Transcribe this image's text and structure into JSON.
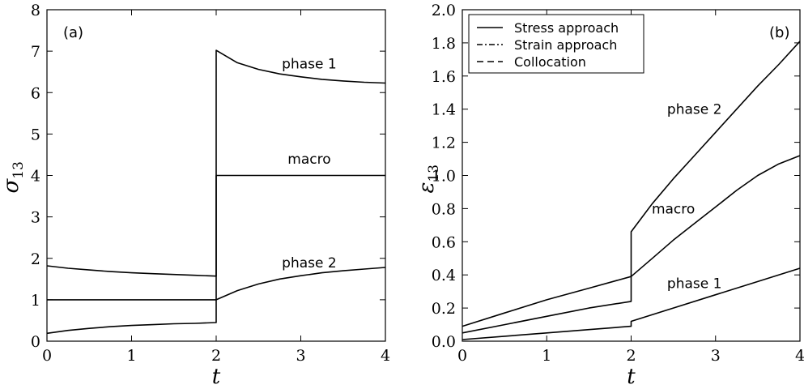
{
  "chart_data": [
    {
      "type": "line",
      "panel_label": "(a)",
      "xlabel": "t",
      "ylabel_symbol": "σ",
      "ylabel_sub": "13",
      "xlim": [
        0,
        4
      ],
      "ylim": [
        0,
        8
      ],
      "xticks": [
        0,
        1,
        2,
        3,
        4
      ],
      "yticks": [
        0,
        1,
        2,
        3,
        4,
        5,
        6,
        7,
        8
      ],
      "grid": false,
      "series": [
        {
          "name": "phase 1",
          "x": [
            0,
            0.25,
            0.5,
            0.75,
            1.0,
            1.25,
            1.5,
            1.75,
            2.0,
            2.0,
            2.25,
            2.5,
            2.75,
            3.0,
            3.25,
            3.5,
            3.75,
            4.0
          ],
          "y": [
            1.82,
            1.76,
            1.72,
            1.68,
            1.65,
            1.63,
            1.61,
            1.59,
            1.57,
            7.02,
            6.72,
            6.56,
            6.45,
            6.38,
            6.32,
            6.28,
            6.25,
            6.23
          ]
        },
        {
          "name": "macro",
          "x": [
            0,
            2.0,
            2.0,
            4.0
          ],
          "y": [
            1.0,
            1.0,
            4.0,
            4.0
          ]
        },
        {
          "name": "phase 2",
          "x": [
            0,
            0.25,
            0.5,
            0.75,
            1.0,
            1.25,
            1.5,
            1.75,
            2.0,
            2.0,
            2.25,
            2.5,
            2.75,
            3.0,
            3.25,
            3.5,
            3.75,
            4.0
          ],
          "y": [
            0.19,
            0.26,
            0.31,
            0.35,
            0.38,
            0.4,
            0.42,
            0.43,
            0.45,
            1.0,
            1.22,
            1.38,
            1.5,
            1.58,
            1.65,
            1.7,
            1.74,
            1.78
          ]
        }
      ],
      "annotations": [
        {
          "text": "phase 1",
          "x": 3.1,
          "y": 6.7
        },
        {
          "text": "macro",
          "x": 3.1,
          "y": 4.4
        },
        {
          "text": "phase 2",
          "x": 3.1,
          "y": 1.9
        }
      ]
    },
    {
      "type": "line",
      "panel_label": "(b)",
      "xlabel": "t",
      "ylabel_symbol": "ε",
      "ylabel_sub": "13",
      "xlim": [
        0,
        4
      ],
      "ylim": [
        0,
        2.0
      ],
      "xticks": [
        0,
        1,
        2,
        3,
        4
      ],
      "yticks": [
        0.0,
        0.2,
        0.4,
        0.6,
        0.8,
        1.0,
        1.2,
        1.4,
        1.6,
        1.8,
        2.0
      ],
      "ytick_labels": [
        "0.0",
        "0.2",
        "0.4",
        "0.6",
        "0.8",
        "1.0",
        "1.2",
        "1.4",
        "1.6",
        "1.8",
        "2.0"
      ],
      "grid": false,
      "legend": {
        "position": "upper-left",
        "entries": [
          {
            "label": "Stress approach",
            "style": "solid"
          },
          {
            "label": "Strain approach",
            "style": "dashdot"
          },
          {
            "label": "Collocation",
            "style": "dashed"
          }
        ]
      },
      "series": [
        {
          "name": "phase 2",
          "x": [
            0,
            0.5,
            1.0,
            1.5,
            2.0,
            2.0,
            2.25,
            2.5,
            2.75,
            3.0,
            3.25,
            3.5,
            3.75,
            4.0
          ],
          "y": [
            0.09,
            0.17,
            0.25,
            0.32,
            0.39,
            0.66,
            0.83,
            0.98,
            1.12,
            1.26,
            1.4,
            1.54,
            1.67,
            1.81
          ]
        },
        {
          "name": "macro",
          "x": [
            0,
            0.5,
            1.0,
            1.5,
            2.0,
            2.0,
            2.25,
            2.5,
            2.75,
            3.0,
            3.25,
            3.5,
            3.75,
            4.0
          ],
          "y": [
            0.05,
            0.1,
            0.15,
            0.2,
            0.24,
            0.39,
            0.5,
            0.61,
            0.71,
            0.81,
            0.91,
            1.0,
            1.07,
            1.12
          ]
        },
        {
          "name": "phase 1",
          "x": [
            0,
            0.5,
            1.0,
            1.5,
            2.0,
            2.0,
            2.5,
            3.0,
            3.5,
            4.0
          ],
          "y": [
            0.01,
            0.03,
            0.05,
            0.07,
            0.09,
            0.12,
            0.2,
            0.28,
            0.36,
            0.44
          ]
        }
      ],
      "annotations": [
        {
          "text": "phase 2",
          "x": 2.75,
          "y": 1.4
        },
        {
          "text": "macro",
          "x": 2.5,
          "y": 0.8
        },
        {
          "text": "phase 1",
          "x": 2.75,
          "y": 0.35
        }
      ]
    }
  ]
}
